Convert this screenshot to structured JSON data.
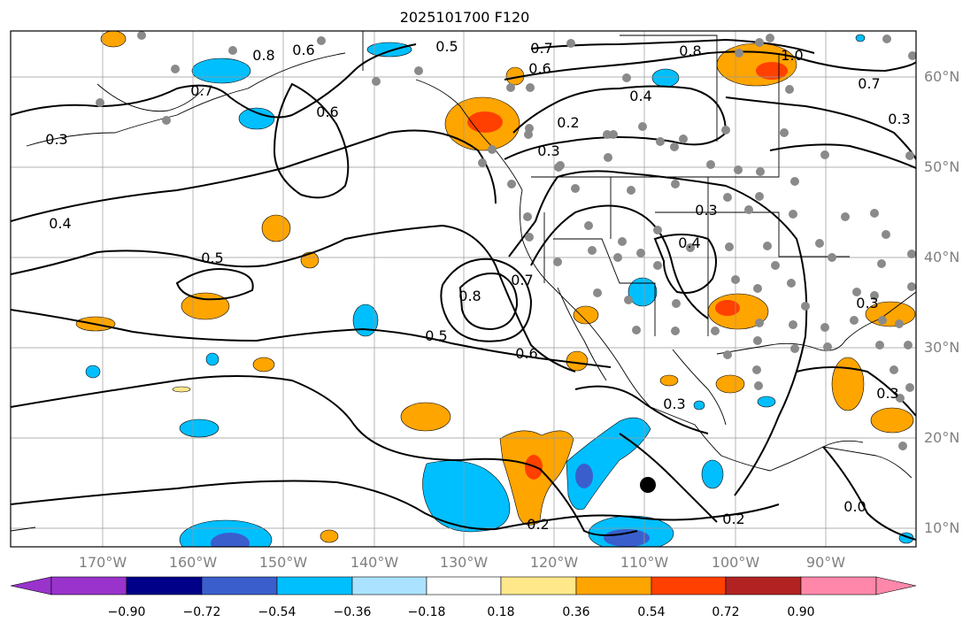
{
  "title": "2025101700 F120",
  "map": {
    "projection": "equirectangular",
    "extent": {
      "lon": [
        -180,
        -80
      ],
      "lat": [
        8,
        65
      ]
    },
    "grid": true,
    "lat_labels": [
      "60°N",
      "50°N",
      "40°N",
      "30°N",
      "20°N",
      "10°N"
    ],
    "lon_labels": [
      "170°W",
      "160°W",
      "150°W",
      "140°W",
      "130°W",
      "120°W",
      "110°W",
      "100°W",
      "90°W"
    ],
    "contour_labels": [
      "0.8",
      "0.6",
      "0.7",
      "0.5",
      "0.7",
      "0.6",
      "0.8",
      "1.0",
      "0.7",
      "0.4",
      "0.6",
      "0.2",
      "0.3",
      "0.3",
      "0.4",
      "0.5",
      "0.8",
      "0.7",
      "0.3",
      "0.4",
      "0.5",
      "0.6",
      "0.3",
      "0.2",
      "0.2",
      "0.3",
      "0.3",
      "0.3",
      "0.0"
    ],
    "station_color": "#8a8a8a",
    "marker": {
      "label": "storm-center"
    }
  },
  "colorbar": {
    "colors": [
      "#9933cc",
      "#000088",
      "#3a5fcd",
      "#00bfff",
      "#aae2ff",
      "#ffffff",
      "#ffe88a",
      "#ffa500",
      "#ff4000",
      "#b22222",
      "#ff88aa"
    ],
    "tick_labels": [
      "−0.90",
      "−0.72",
      "−0.54",
      "−0.36",
      "−0.18",
      "0.18",
      "0.36",
      "0.54",
      "0.72",
      "0.90"
    ]
  }
}
